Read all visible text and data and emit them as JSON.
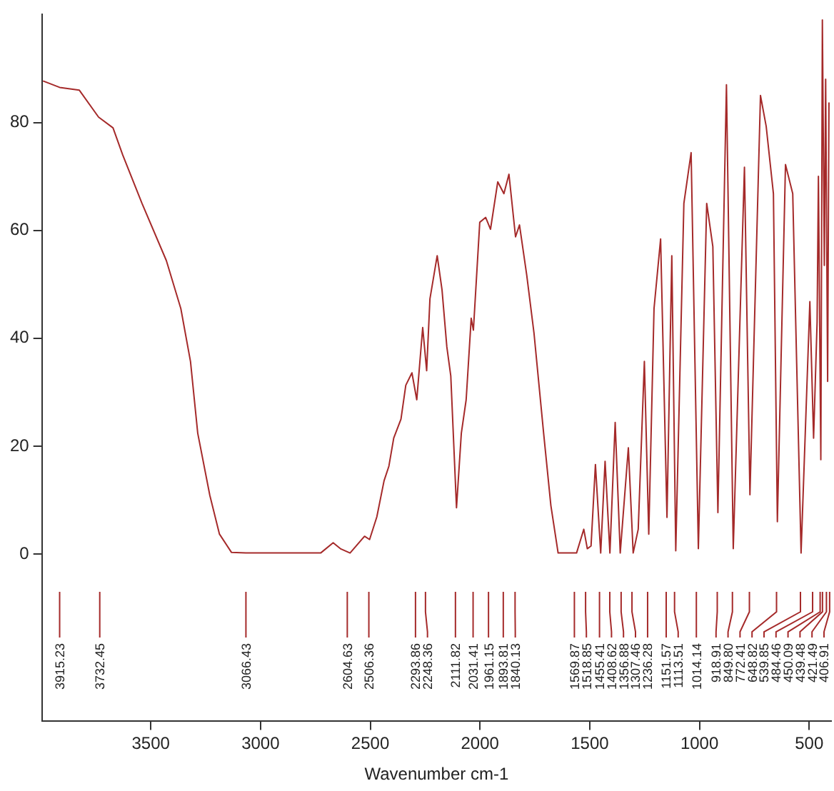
{
  "chart_data": {
    "type": "line",
    "xlabel": "Wavenumber cm-1",
    "x": [
      3991,
      3915.23,
      3826,
      3738,
      3672,
      3628,
      3540,
      3429,
      3363,
      3319,
      3286,
      3231,
      3187,
      3132,
      3066.43,
      2726,
      2669,
      2636,
      2592,
      2526,
      2503,
      2470,
      2437,
      2415,
      2393,
      2360,
      2338,
      2310,
      2288,
      2261,
      2243,
      2228,
      2195,
      2173,
      2151,
      2133,
      2107,
      2085,
      2063,
      2040,
      2030,
      2001,
      1974,
      1952,
      1919,
      1891,
      1868,
      1838,
      1820,
      1787,
      1754,
      1710,
      1677,
      1644,
      1560,
      1527,
      1511,
      1494,
      1474,
      1450,
      1430,
      1408,
      1384,
      1361,
      1324,
      1302,
      1279,
      1251,
      1231,
      1207,
      1177,
      1148,
      1126,
      1108,
      1071,
      1038,
      1005,
      967,
      939,
      916,
      877,
      846,
      795,
      770,
      722,
      696,
      663,
      645,
      608,
      575,
      537,
      497,
      480,
      464,
      458,
      447,
      440,
      431,
      425,
      416,
      410
    ],
    "series": [
      {
        "color": "#a52a2a",
        "values": [
          87.7,
          86.5,
          86,
          81,
          79,
          74,
          65,
          54.4,
          45.5,
          35.7,
          22.4,
          10.9,
          3.7,
          0.3,
          0.2,
          0.2,
          2.1,
          1,
          0.2,
          3.3,
          2.7,
          6.9,
          13.6,
          16.3,
          21.5,
          25,
          31.3,
          33.6,
          28.6,
          42,
          34,
          47.3,
          55.3,
          49,
          38.4,
          33,
          8.6,
          22.4,
          28.6,
          43.7,
          41.5,
          61.5,
          62.4,
          60.2,
          69,
          66.8,
          70.4,
          58.8,
          61,
          51.7,
          41,
          22.4,
          9,
          0.2,
          0.2,
          4.6,
          1,
          1.5,
          16.6,
          0.2,
          17.2,
          0.2,
          24.4,
          0.2,
          19.7,
          0.2,
          4.6,
          35.7,
          3.7,
          45.5,
          58.4,
          6.8,
          55.3,
          0.6,
          65,
          74.4,
          1,
          65,
          57,
          7.7,
          87,
          1,
          71.7,
          11,
          85,
          79.3,
          66.8,
          6,
          72.2,
          66.8,
          0.2,
          46.8,
          21.5,
          43,
          70,
          17.5,
          99,
          53.5,
          88,
          32,
          83.7
        ]
      }
    ],
    "xlim": [
      3996,
      400
    ],
    "xticks": [
      3500,
      3000,
      2500,
      2000,
      1500,
      1000,
      500
    ],
    "ylim": [
      -31,
      100
    ],
    "yticks": [
      0,
      20,
      40,
      60,
      80
    ],
    "grid": false,
    "legend": false,
    "marker": "none",
    "line_style": "solid",
    "annotations": [
      {
        "text": "3915.23",
        "x": 3915.23
      },
      {
        "text": "3732.45",
        "x": 3732.45
      },
      {
        "text": "3066.43",
        "x": 3066.43
      },
      {
        "text": "2604.63",
        "x": 2604.63
      },
      {
        "text": "2506.36",
        "x": 2506.36
      },
      {
        "text": "2293.86",
        "x": 2293.86
      },
      {
        "text": "2248.36",
        "x": 2248.36
      },
      {
        "text": "2111.82",
        "x": 2111.82
      },
      {
        "text": "2031.41",
        "x": 2031.41
      },
      {
        "text": "1961.15",
        "x": 1961.15
      },
      {
        "text": "1893.81",
        "x": 1893.81
      },
      {
        "text": "1840.13",
        "x": 1840.13
      },
      {
        "text": "1569.87",
        "x": 1569.87
      },
      {
        "text": "1518.85",
        "x": 1518.85
      },
      {
        "text": "1455.41",
        "x": 1455.41
      },
      {
        "text": "1408.62",
        "x": 1408.62
      },
      {
        "text": "1356.88",
        "x": 1356.88
      },
      {
        "text": "1307.46",
        "x": 1307.46
      },
      {
        "text": "1236.28",
        "x": 1236.28
      },
      {
        "text": "1151.57",
        "x": 1151.57
      },
      {
        "text": "1113.51",
        "x": 1113.51
      },
      {
        "text": "1014.14",
        "x": 1014.14
      },
      {
        "text": "918.91",
        "x": 918.91
      },
      {
        "text": "849.80",
        "x": 849.8
      },
      {
        "text": "772.41",
        "x": 772.41
      },
      {
        "text": "648.82",
        "x": 648.82
      },
      {
        "text": "539.85",
        "x": 539.85
      },
      {
        "text": "484.46",
        "x": 484.46
      },
      {
        "text": "450.09",
        "x": 450.09
      },
      {
        "text": "439.48",
        "x": 439.48
      },
      {
        "text": "421.49",
        "x": 421.49
      },
      {
        "text": "406.91",
        "x": 406.91
      }
    ]
  }
}
